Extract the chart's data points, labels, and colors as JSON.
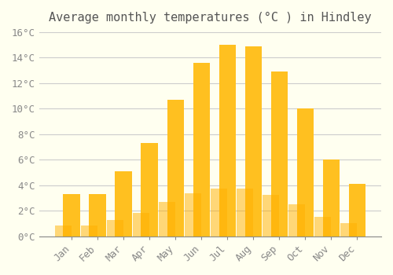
{
  "title": "Average monthly temperatures (°C ) in Hindley",
  "months": [
    "Jan",
    "Feb",
    "Mar",
    "Apr",
    "May",
    "Jun",
    "Jul",
    "Aug",
    "Sep",
    "Oct",
    "Nov",
    "Dec"
  ],
  "values": [
    3.3,
    3.3,
    5.1,
    7.3,
    10.7,
    13.6,
    15.0,
    14.9,
    12.9,
    10.0,
    6.0,
    4.1
  ],
  "bar_color_top": "#FFC020",
  "bar_color_bottom": "#FFB000",
  "ylim": [
    0,
    16
  ],
  "yticks": [
    0,
    2,
    4,
    6,
    8,
    10,
    12,
    14,
    16
  ],
  "ytick_labels": [
    "0°C",
    "2°C",
    "4°C",
    "6°C",
    "8°C",
    "10°C",
    "12°C",
    "14°C",
    "16°C"
  ],
  "background_color": "#FFFFF0",
  "grid_color": "#CCCCCC",
  "title_fontsize": 11,
  "tick_fontsize": 9
}
